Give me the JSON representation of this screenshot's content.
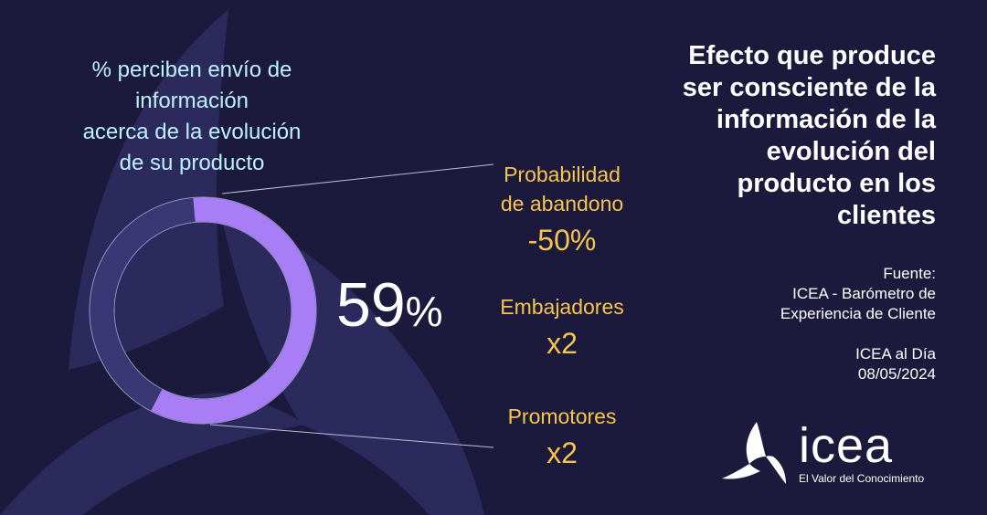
{
  "colors": {
    "background": "#1c1a3c",
    "donut_track": "#3a3775",
    "donut_fill": "#a97df6",
    "caption": "#bdf1ff",
    "stat_accent": "#f6c54c",
    "text": "#ffffff"
  },
  "caption": {
    "lines": [
      "% perciben envío de",
      "información",
      "acerca de la evolución",
      "de su producto"
    ]
  },
  "chart_data": {
    "type": "pie",
    "style": "donut",
    "slices": [
      {
        "label": "% perciben envío de información acerca de la evolución de su producto",
        "value": 59
      },
      {
        "label": "",
        "value": 41
      }
    ],
    "center_value": "59",
    "center_unit": "%"
  },
  "stats": [
    {
      "label_lines": [
        "Probabilidad",
        "de abandono"
      ],
      "value": "-50%"
    },
    {
      "label_lines": [
        "Embajadores"
      ],
      "value": "x2"
    },
    {
      "label_lines": [
        "Promotores"
      ],
      "value": "x2"
    }
  ],
  "headline": {
    "lines": [
      "Efecto que produce",
      "ser consciente de la",
      "información de la",
      "evolución del",
      "producto en los",
      "clientes"
    ]
  },
  "source": {
    "lines": [
      "Fuente:",
      "ICEA - Barómetro de",
      "Experiencia de Cliente"
    ],
    "publication": [
      "ICEA al Día",
      "08/05/2024"
    ]
  },
  "logo": {
    "wordmark": "icea",
    "tagline": "El Valor del Conocimiento",
    "icon": "icea-triskelion-icon"
  }
}
